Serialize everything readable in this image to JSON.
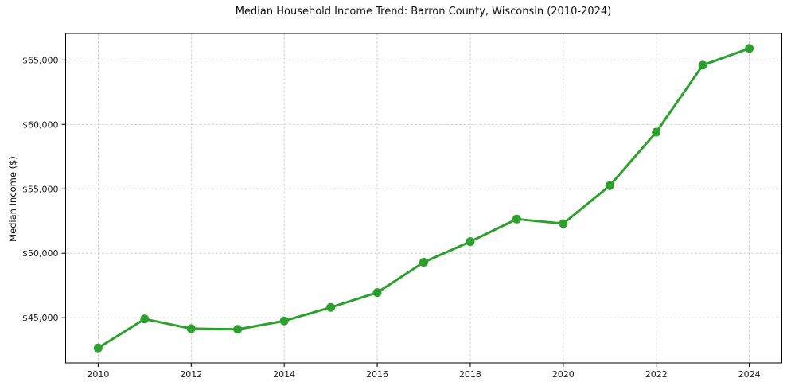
{
  "chart_data": {
    "type": "line",
    "title": "Median Household Income Trend: Barron County, Wisconsin (2010-2024)",
    "xlabel": "",
    "ylabel": "Median Income ($)",
    "series_name": "Median household income",
    "x": [
      2010,
      2011,
      2012,
      2013,
      2014,
      2015,
      2016,
      2017,
      2018,
      2019,
      2020,
      2021,
      2022,
      2023,
      2024
    ],
    "values": [
      42650,
      44900,
      44150,
      44100,
      44750,
      45800,
      46950,
      49300,
      50900,
      52650,
      52300,
      55250,
      59400,
      64600,
      65900
    ],
    "x_ticks": [
      2010,
      2012,
      2014,
      2016,
      2018,
      2020,
      2022,
      2024
    ],
    "y_ticks": [
      45000,
      50000,
      55000,
      60000,
      65000
    ],
    "xlim": [
      2009.3,
      2024.7
    ],
    "ylim": [
      41490,
      67060
    ],
    "y_tick_format": "currency_usd",
    "line_color": "#2ca02c",
    "marker_color": "#2ca02c",
    "grid": true,
    "grid_style": "dashed",
    "grid_color": "#c9c9c9",
    "axis_border_color": "#000000",
    "background_color": "#ffffff",
    "legend": "none"
  }
}
